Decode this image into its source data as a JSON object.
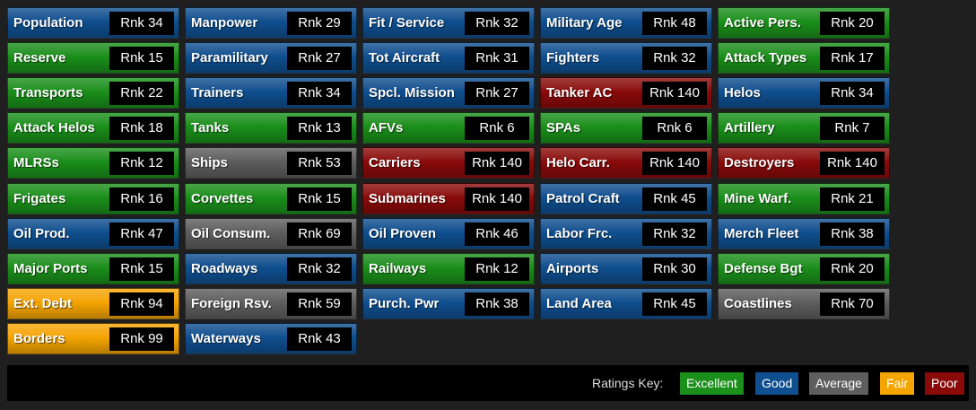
{
  "cells": [
    {
      "label": "Population",
      "rank": "Rnk 34",
      "color": "#0f4f8f"
    },
    {
      "label": "Manpower",
      "rank": "Rnk 29",
      "color": "#0f4f8f"
    },
    {
      "label": "Fit / Service",
      "rank": "Rnk 32",
      "color": "#0f4f8f"
    },
    {
      "label": "Military Age",
      "rank": "Rnk 48",
      "color": "#0f4f8f"
    },
    {
      "label": "Active Pers.",
      "rank": "Rnk 20",
      "color": "#1a8f1a"
    },
    {
      "label": "Reserve",
      "rank": "Rnk 15",
      "color": "#1a8f1a"
    },
    {
      "label": "Paramilitary",
      "rank": "Rnk 27",
      "color": "#0f4f8f"
    },
    {
      "label": "Tot Aircraft",
      "rank": "Rnk 31",
      "color": "#0f4f8f"
    },
    {
      "label": "Fighters",
      "rank": "Rnk 32",
      "color": "#0f4f8f"
    },
    {
      "label": "Attack Types",
      "rank": "Rnk 17",
      "color": "#1a8f1a"
    },
    {
      "label": "Transports",
      "rank": "Rnk 22",
      "color": "#1a8f1a"
    },
    {
      "label": "Trainers",
      "rank": "Rnk 34",
      "color": "#0f4f8f"
    },
    {
      "label": "Spcl. Mission",
      "rank": "Rnk 27",
      "color": "#0f4f8f"
    },
    {
      "label": "Tanker AC",
      "rank": "Rnk 140",
      "color": "#8a0a0a"
    },
    {
      "label": "Helos",
      "rank": "Rnk 34",
      "color": "#0f4f8f"
    },
    {
      "label": "Attack Helos",
      "rank": "Rnk 18",
      "color": "#1a8f1a"
    },
    {
      "label": "Tanks",
      "rank": "Rnk 13",
      "color": "#1a8f1a"
    },
    {
      "label": "AFVs",
      "rank": "Rnk 6",
      "color": "#1a8f1a"
    },
    {
      "label": "SPAs",
      "rank": "Rnk 6",
      "color": "#1a8f1a"
    },
    {
      "label": "Artillery",
      "rank": "Rnk 7",
      "color": "#1a8f1a"
    },
    {
      "label": "MLRSs",
      "rank": "Rnk 12",
      "color": "#1a8f1a"
    },
    {
      "label": "Ships",
      "rank": "Rnk 53",
      "color": "#5e5e5e"
    },
    {
      "label": "Carriers",
      "rank": "Rnk 140",
      "color": "#8a0a0a"
    },
    {
      "label": "Helo Carr.",
      "rank": "Rnk 140",
      "color": "#8a0a0a"
    },
    {
      "label": "Destroyers",
      "rank": "Rnk 140",
      "color": "#8a0a0a"
    },
    {
      "label": "Frigates",
      "rank": "Rnk 16",
      "color": "#1a8f1a"
    },
    {
      "label": "Corvettes",
      "rank": "Rnk 15",
      "color": "#1a8f1a"
    },
    {
      "label": "Submarines",
      "rank": "Rnk 140",
      "color": "#8a0a0a"
    },
    {
      "label": "Patrol Craft",
      "rank": "Rnk 45",
      "color": "#0f4f8f"
    },
    {
      "label": "Mine Warf.",
      "rank": "Rnk 21",
      "color": "#1a8f1a"
    },
    {
      "label": "Oil Prod.",
      "rank": "Rnk 47",
      "color": "#0f4f8f"
    },
    {
      "label": "Oil Consum.",
      "rank": "Rnk 69",
      "color": "#5e5e5e"
    },
    {
      "label": "Oil Proven",
      "rank": "Rnk 46",
      "color": "#0f4f8f"
    },
    {
      "label": "Labor Frc.",
      "rank": "Rnk 32",
      "color": "#0f4f8f"
    },
    {
      "label": "Merch Fleet",
      "rank": "Rnk 38",
      "color": "#0f4f8f"
    },
    {
      "label": "Major Ports",
      "rank": "Rnk 15",
      "color": "#1a8f1a"
    },
    {
      "label": "Roadways",
      "rank": "Rnk 32",
      "color": "#0f4f8f"
    },
    {
      "label": "Railways",
      "rank": "Rnk 12",
      "color": "#1a8f1a"
    },
    {
      "label": "Airports",
      "rank": "Rnk 30",
      "color": "#0f4f8f"
    },
    {
      "label": "Defense Bgt",
      "rank": "Rnk 20",
      "color": "#1a8f1a"
    },
    {
      "label": "Ext. Debt",
      "rank": "Rnk 94",
      "color": "#f5a500"
    },
    {
      "label": "Foreign Rsv.",
      "rank": "Rnk 59",
      "color": "#5e5e5e"
    },
    {
      "label": "Purch. Pwr",
      "rank": "Rnk 38",
      "color": "#0f4f8f"
    },
    {
      "label": "Land Area",
      "rank": "Rnk 45",
      "color": "#0f4f8f"
    },
    {
      "label": "Coastlines",
      "rank": "Rnk 70",
      "color": "#5e5e5e"
    },
    {
      "label": "Borders",
      "rank": "Rnk 99",
      "color": "#f5a500"
    },
    {
      "label": "Waterways",
      "rank": "Rnk 43",
      "color": "#0f4f8f"
    }
  ],
  "key": {
    "title": "Ratings Key:",
    "items": [
      {
        "label": "Excellent",
        "color": "#1a8f1a"
      },
      {
        "label": "Good",
        "color": "#0f4f8f"
      },
      {
        "label": "Average",
        "color": "#5e5e5e"
      },
      {
        "label": "Fair",
        "color": "#f5a500"
      },
      {
        "label": "Poor",
        "color": "#8a0a0a"
      }
    ]
  }
}
